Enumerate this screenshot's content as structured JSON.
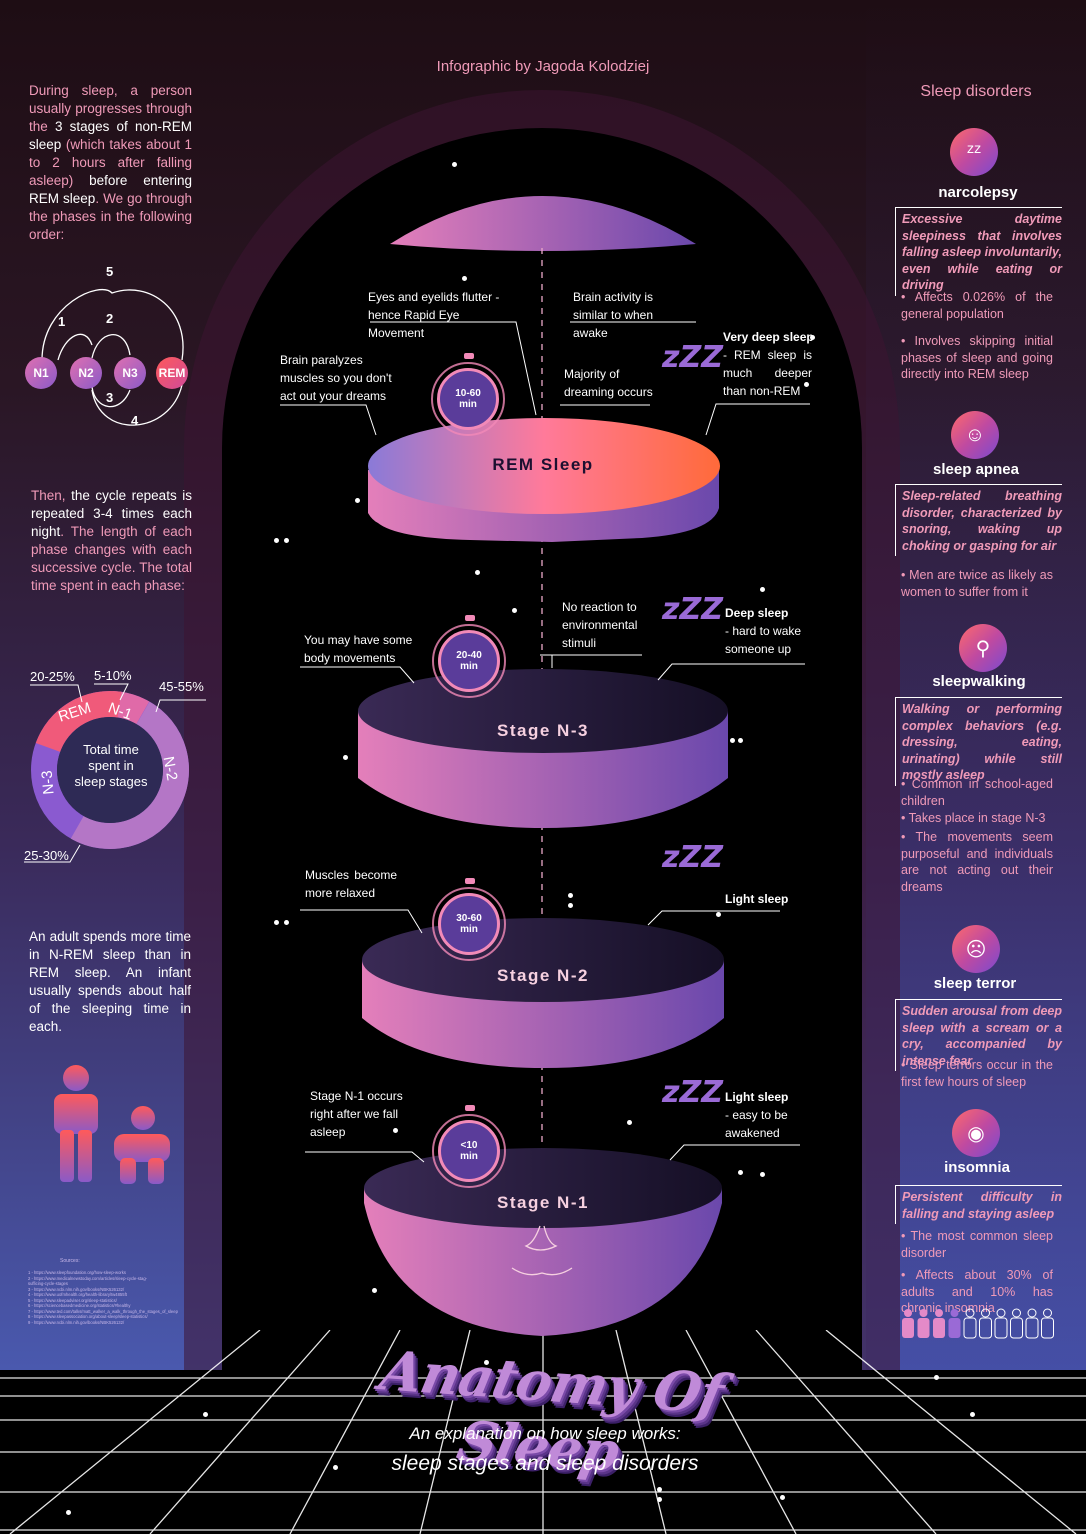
{
  "header": {
    "credit": "Infographic by Jagoda Kolodziej"
  },
  "left": {
    "intro_parts": [
      {
        "t": "During sleep, a person usually progresses through the ",
        "s": "pink"
      },
      {
        "t": "3 stages of non-REM sleep",
        "s": "wht"
      },
      {
        "t": " (which takes about 1 to 2 hours after falling asleep) ",
        "s": "pink"
      },
      {
        "t": "before entering REM sleep",
        "s": "wht"
      },
      {
        "t": ". We go through the phases in the following order:",
        "s": "pink"
      }
    ],
    "cycle_nodes": [
      "N1",
      "N2",
      "N3",
      "REM"
    ],
    "cycle_numbers": [
      "5",
      "1",
      "2",
      "3",
      "4"
    ],
    "repeat_parts": [
      {
        "t": "Then, ",
        "s": "pink"
      },
      {
        "t": "the cycle repeats is repeated 3-4 times each night",
        "s": "wht"
      },
      {
        "t": ". The length of each phase changes with each successive cycle. The total time spent in each phase:",
        "s": "pink"
      }
    ],
    "donut": {
      "center": "Total time spent in sleep stages",
      "segments": [
        {
          "label": "REM",
          "pct": "20-25%",
          "color": "#f05a7a"
        },
        {
          "label": "N-1",
          "pct": "5-10%",
          "color": "#e06aa8"
        },
        {
          "label": "N-2",
          "pct": "45-55%",
          "color": "#b476c6"
        },
        {
          "label": "N-3",
          "pct": "25-30%",
          "color": "#8a5ad0"
        }
      ]
    },
    "adult_text": "An adult spends more time in N-REM sleep than in REM sleep. An infant usually spends about half of the sleeping time in each.",
    "sources_title": "Sources:",
    "sources": [
      "1 - https://www.sleepfoundation.org/how-sleep-works",
      "2 - https://www.medicalnewstoday.com/articles/sleep-cycle-stag-",
      "sufficing-cycle-stages",
      "3 - https://www.ncbi.nlm.nih.gov/books/NBK526132/",
      "4 - https://www.uofmhealth.org/health-library/tw4855ft",
      "5 - https://www.sleepadviser.org/sleep-statistics/",
      "6 - https://sciencebasedmedicine.org/statistics/#healthy",
      "7 - https://www.ted.com/talks/matt_walker_a_walk_through_the_stages_of_sleep",
      "8 - https://www.sleepassociation.org/about-sleep/sleep-statistics/",
      "9 - https://www.ncbi.nlm.nih.gov/books/NBK526132/",
      "10 - https://www.simplypsychology.org/sleep-stages.html"
    ]
  },
  "center": {
    "layers": [
      {
        "label": "REM Sleep",
        "timer": "10-60",
        "unit": "min",
        "notes": {
          "a": "Eyes and eyelids flutter - hence Rapid Eye Movement",
          "b": "Brain activity is similar to when awake",
          "c": "Brain paralyzes muscles so you don't act out your dreams",
          "d": "Majority of dreaming occurs",
          "e_title": "Very deep sleep",
          "e_rest": "- REM sleep is much deeper than non-REM"
        }
      },
      {
        "label": "Stage N-3",
        "timer": "20-40",
        "unit": "min",
        "notes": {
          "a": "No reaction to environmental stimuli",
          "b": "You may have some body movements",
          "c_title": "Deep sleep",
          "c_rest": "- hard to wake someone up"
        }
      },
      {
        "label": "Stage N-2",
        "timer": "30-60",
        "unit": "min",
        "notes": {
          "a": "Muscles become more relaxed",
          "b_title": "Light sleep"
        }
      },
      {
        "label": "Stage N-1",
        "timer": "<10",
        "unit": "min",
        "notes": {
          "a": "Stage N-1 occurs right after we fall asleep",
          "b_title": "Light sleep",
          "b_rest": "- easy to be awakened"
        }
      }
    ],
    "zzz": "zZZ"
  },
  "right": {
    "title": "Sleep disorders",
    "disorders": [
      {
        "name": "narcolepsy",
        "icon": "zzz-icon",
        "glyph": "ᶻᶻ",
        "desc": "Excessive daytime sleepiness that involves falling asleep involuntarily, even while eating or driving",
        "bullets": [
          "• Affects 0.026% of the general population",
          "• Involves skipping initial phases of sleep and going directly into REM sleep"
        ]
      },
      {
        "name": "sleep apnea",
        "icon": "face-icon",
        "glyph": "☺",
        "desc": "Sleep-related breathing disorder, characterized by snoring, waking up choking or gasping for air",
        "bullets": [
          "• Men are twice as likely as women to suffer from it"
        ]
      },
      {
        "name": "sleepwalking",
        "icon": "walking-person-icon",
        "glyph": "⚲",
        "desc": "Walking or performing complex behaviors (e.g. dressing, eating, urinating) while still mostly asleep",
        "bullets": [
          "• Common in school-aged children",
          "• Takes place in stage N-3",
          "• The movements seem purposeful and individuals are not acting out their dreams"
        ]
      },
      {
        "name": "sleep terror",
        "icon": "scared-face-icon",
        "glyph": "☹",
        "desc": "Sudden arousal from deep sleep with a scream or a cry, accompanied by intense fear",
        "bullets": [
          "• Sleep terrors occur in the first few hours of sleep"
        ]
      },
      {
        "name": "insomnia",
        "icon": "eye-icon",
        "glyph": "◉",
        "desc": "Persistent difficulty in falling and staying asleep",
        "bullets": [
          "• The most common sleep disorder",
          "• Affects about 30% of adults and 10% has chronic insomnia"
        ]
      }
    ],
    "people_filled": 4,
    "people_total": 10
  },
  "footer": {
    "title": "Anatomy Of Sleep",
    "sub1": "An explanation on how sleep works:",
    "sub2": "sleep stages and sleep disorders"
  }
}
